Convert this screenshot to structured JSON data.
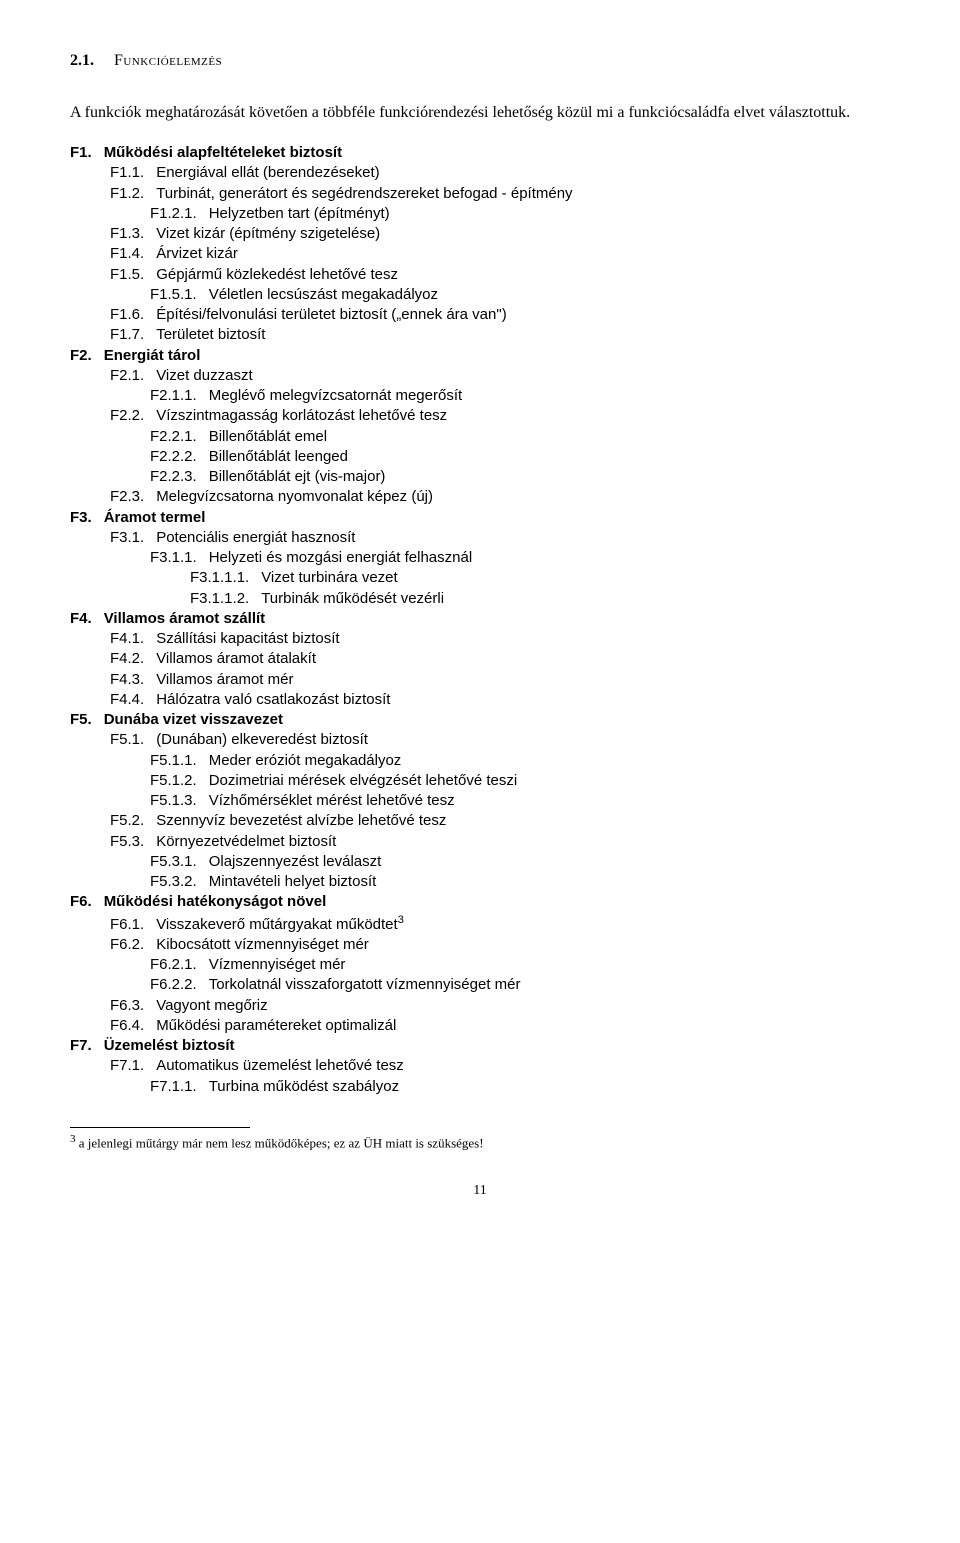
{
  "section": {
    "number": "2.1.",
    "title": "Funkcióelemzés"
  },
  "intro": "A funkciók meghatározását követően a többféle funkciórendezési lehetőség közül mi a funkciócsaládfa elvet választottuk.",
  "lines": [
    {
      "lvl": 0,
      "bold": true,
      "k": "F1.",
      "t": "Működési alapfeltételeket biztosít"
    },
    {
      "lvl": 1,
      "bold": false,
      "k": "F1.1.",
      "t": "Energiával ellát (berendezéseket)"
    },
    {
      "lvl": 1,
      "bold": false,
      "k": "F1.2.",
      "t": "Turbinát, generátort és segédrendszereket befogad - építmény"
    },
    {
      "lvl": 2,
      "bold": false,
      "k": "F1.2.1.",
      "t": "Helyzetben tart (építményt)"
    },
    {
      "lvl": 1,
      "bold": false,
      "k": "F1.3.",
      "t": "Vizet kizár (építmény szigetelése)"
    },
    {
      "lvl": 1,
      "bold": false,
      "k": "F1.4.",
      "t": "Árvizet kizár"
    },
    {
      "lvl": 1,
      "bold": false,
      "k": "F1.5.",
      "t": "Gépjármű közlekedést lehetővé tesz"
    },
    {
      "lvl": 2,
      "bold": false,
      "k": "F1.5.1.",
      "t": "Véletlen lecsúszást megakadályoz"
    },
    {
      "lvl": 1,
      "bold": false,
      "k": "F1.6.",
      "t": "Építési/felvonulási területet biztosít („ennek ára van\")"
    },
    {
      "lvl": 1,
      "bold": false,
      "k": "F1.7.",
      "t": "Területet biztosít"
    },
    {
      "lvl": 0,
      "bold": true,
      "k": "F2.",
      "t": "Energiát tárol"
    },
    {
      "lvl": 1,
      "bold": false,
      "k": "F2.1.",
      "t": "Vizet duzzaszt"
    },
    {
      "lvl": 2,
      "bold": false,
      "k": "F2.1.1.",
      "t": "Meglévő melegvízcsatornát megerősít"
    },
    {
      "lvl": 1,
      "bold": false,
      "k": "F2.2.",
      "t": "Vízszintmagasság korlátozást lehetővé tesz"
    },
    {
      "lvl": 2,
      "bold": false,
      "k": "F2.2.1.",
      "t": "Billenőtáblát emel"
    },
    {
      "lvl": 2,
      "bold": false,
      "k": "F2.2.2.",
      "t": "Billenőtáblát leenged"
    },
    {
      "lvl": 2,
      "bold": false,
      "k": "F2.2.3.",
      "t": "Billenőtáblát ejt (vis-major)"
    },
    {
      "lvl": 1,
      "bold": false,
      "k": "F2.3.",
      "t": "Melegvízcsatorna nyomvonalat képez (új)"
    },
    {
      "lvl": 0,
      "bold": true,
      "k": "F3.",
      "t": "Áramot termel"
    },
    {
      "lvl": 1,
      "bold": false,
      "k": "F3.1.",
      "t": "Potenciális energiát hasznosít"
    },
    {
      "lvl": 2,
      "bold": false,
      "k": "F3.1.1.",
      "t": "Helyzeti és mozgási energiát felhasznál"
    },
    {
      "lvl": 3,
      "bold": false,
      "k": "F3.1.1.1.",
      "t": "Vizet turbinára vezet"
    },
    {
      "lvl": 3,
      "bold": false,
      "k": "F3.1.1.2.",
      "t": "Turbinák működését vezérli"
    },
    {
      "lvl": 0,
      "bold": true,
      "k": "F4.",
      "t": "Villamos áramot szállít"
    },
    {
      "lvl": 1,
      "bold": false,
      "k": "F4.1.",
      "t": "Szállítási kapacitást biztosít"
    },
    {
      "lvl": 1,
      "bold": false,
      "k": "F4.2.",
      "t": "Villamos áramot átalakít"
    },
    {
      "lvl": 1,
      "bold": false,
      "k": "F4.3.",
      "t": "Villamos áramot mér"
    },
    {
      "lvl": 1,
      "bold": false,
      "k": "F4.4.",
      "t": "Hálózatra való csatlakozást biztosít"
    },
    {
      "lvl": 0,
      "bold": true,
      "k": "F5.",
      "t": "Dunába vizet visszavezet"
    },
    {
      "lvl": 1,
      "bold": false,
      "k": "F5.1.",
      "t": "(Dunában) elkeveredést biztosít"
    },
    {
      "lvl": 2,
      "bold": false,
      "k": "F5.1.1.",
      "t": "Meder eróziót megakadályoz"
    },
    {
      "lvl": 2,
      "bold": false,
      "k": "F5.1.2.",
      "t": "Dozimetriai mérések elvégzését lehetővé teszi"
    },
    {
      "lvl": 2,
      "bold": false,
      "k": "F5.1.3.",
      "t": "Vízhőmérséklet mérést lehetővé tesz"
    },
    {
      "lvl": 1,
      "bold": false,
      "k": "F5.2.",
      "t": "Szennyvíz bevezetést alvízbe lehetővé tesz"
    },
    {
      "lvl": 1,
      "bold": false,
      "k": "F5.3.",
      "t": "Környezetvédelmet biztosít"
    },
    {
      "lvl": 2,
      "bold": false,
      "k": "F5.3.1.",
      "t": "Olajszennyezést leválaszt"
    },
    {
      "lvl": 2,
      "bold": false,
      "k": "F5.3.2.",
      "t": "Mintavételi helyet biztosít"
    },
    {
      "lvl": 0,
      "bold": true,
      "k": "F6.",
      "t": "Működési hatékonyságot növel"
    },
    {
      "lvl": 1,
      "bold": false,
      "k": "F6.1.",
      "t": "Visszakeverő műtárgyakat működtet",
      "sup": "3"
    },
    {
      "lvl": 1,
      "bold": false,
      "k": "F6.2.",
      "t": "Kibocsátott vízmennyiséget mér"
    },
    {
      "lvl": 2,
      "bold": false,
      "k": "F6.2.1.",
      "t": "Vízmennyiséget mér"
    },
    {
      "lvl": 2,
      "bold": false,
      "k": "F6.2.2.",
      "t": "Torkolatnál visszaforgatott vízmennyiséget mér"
    },
    {
      "lvl": 1,
      "bold": false,
      "k": "F6.3.",
      "t": "Vagyont megőriz"
    },
    {
      "lvl": 1,
      "bold": false,
      "k": "F6.4.",
      "t": "Működési paramétereket optimalizál"
    },
    {
      "lvl": 0,
      "bold": true,
      "k": "F7.",
      "t": "Üzemelést biztosít"
    },
    {
      "lvl": 1,
      "bold": false,
      "k": "F7.1.",
      "t": "Automatikus üzemelést lehetővé tesz"
    },
    {
      "lvl": 2,
      "bold": false,
      "k": "F7.1.1.",
      "t": "Turbina működést szabályoz"
    }
  ],
  "footnote": {
    "marker": "3",
    "text": "a jelenlegi műtárgy már nem lesz működőképes; ez az ÜH miatt is szükséges!"
  },
  "page_number": "11"
}
